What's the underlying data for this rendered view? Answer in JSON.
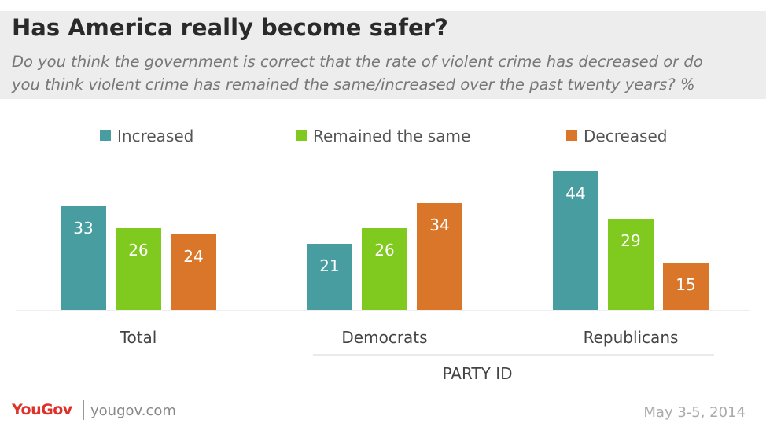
{
  "title": "Has America really become safer?",
  "subtitle_lines": [
    "Do you think the government is correct that the rate of violent crime has decreased or do",
    "you think violent crime has remained the same/increased over the past twenty years? %"
  ],
  "footer": {
    "logo": "YouGov",
    "site": "yougov.com",
    "date": "May 3-5, 2014"
  },
  "colors": {
    "Increased": "#479da0",
    "Remained the same": "#80c91e",
    "Decreased": "#d9762a"
  },
  "chart_data": {
    "type": "bar",
    "categories": [
      "Total",
      "Democrats",
      "Republicans"
    ],
    "series": [
      {
        "name": "Increased",
        "values": [
          33,
          21,
          44
        ]
      },
      {
        "name": "Remained the same",
        "values": [
          26,
          26,
          29
        ]
      },
      {
        "name": "Decreased",
        "values": [
          24,
          34,
          15
        ]
      }
    ],
    "group_label": "PARTY ID",
    "grouped_categories": [
      "Democrats",
      "Republicans"
    ],
    "legend_position": "top",
    "grid": false
  }
}
